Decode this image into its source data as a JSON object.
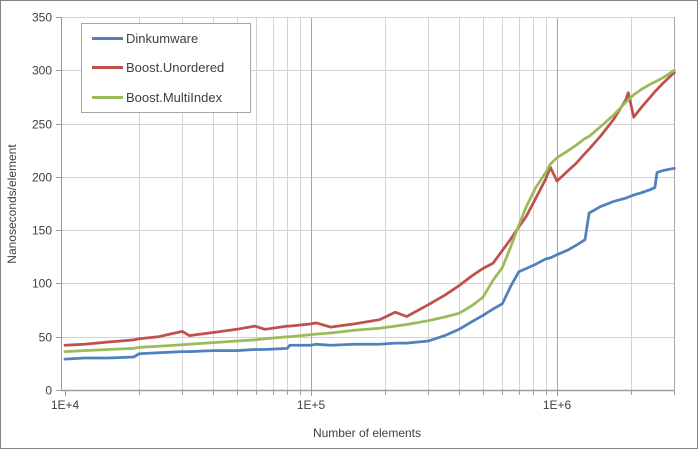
{
  "chart_data": {
    "type": "line",
    "title": "",
    "xlabel": "Number of elements",
    "ylabel": "Nanoseconds/element",
    "x_scale": "log",
    "xlim": [
      10000,
      3000000
    ],
    "ylim": [
      0,
      350
    ],
    "grid": "both",
    "legend_position": "top-left",
    "x_major_ticks": [
      {
        "value": 10000,
        "label": "1E+4"
      },
      {
        "value": 100000,
        "label": "1E+5"
      },
      {
        "value": 1000000,
        "label": "1E+6"
      }
    ],
    "y_ticks": [
      {
        "value": 0,
        "label": "0"
      },
      {
        "value": 50,
        "label": "50"
      },
      {
        "value": 100,
        "label": "100"
      },
      {
        "value": 150,
        "label": "150"
      },
      {
        "value": 200,
        "label": "200"
      },
      {
        "value": 250,
        "label": "250"
      },
      {
        "value": 300,
        "label": "300"
      },
      {
        "value": 350,
        "label": "350"
      }
    ],
    "x": [
      10000,
      12000,
      15000,
      19000,
      20000,
      24000,
      30000,
      32000,
      40000,
      50000,
      59000,
      65000,
      80000,
      82000,
      100000,
      105000,
      120000,
      150000,
      190000,
      220000,
      245000,
      300000,
      350000,
      400000,
      450000,
      500000,
      550000,
      600000,
      650000,
      700000,
      750000,
      820000,
      900000,
      940000,
      1000000,
      1100000,
      1200000,
      1300000,
      1350000,
      1500000,
      1700000,
      1900000,
      1950000,
      2050000,
      2200000,
      2400000,
      2500000,
      2550000,
      2700000,
      3000000
    ],
    "series": [
      {
        "name": "Dinkumware",
        "color": "#4F81BD",
        "values": [
          29,
          30,
          30,
          31,
          34,
          35,
          36,
          36,
          37,
          37,
          38,
          38,
          39,
          42,
          42,
          43,
          42,
          43,
          43,
          44,
          44,
          46,
          51,
          57,
          64,
          70,
          76,
          81,
          98,
          111,
          114,
          118,
          123,
          124,
          127,
          131,
          136,
          141,
          166,
          172,
          177,
          180,
          181,
          183,
          185,
          188,
          190,
          204,
          206,
          208
        ]
      },
      {
        "name": "Boost.Unordered",
        "color": "#C0504D",
        "values": [
          42,
          43,
          45,
          47,
          48,
          50,
          55,
          51,
          54,
          57,
          60,
          57,
          60,
          60,
          62,
          63,
          59,
          62,
          66,
          73,
          69,
          80,
          89,
          98,
          107,
          114,
          119,
          131,
          142,
          153,
          163,
          180,
          198,
          209,
          196,
          205,
          213,
          222,
          226,
          238,
          254,
          272,
          279,
          256,
          265,
          275,
          280,
          282,
          288,
          298
        ]
      },
      {
        "name": "Boost.MultiIndex",
        "color": "#9BBB59",
        "values": [
          36,
          37,
          38,
          39,
          40,
          41,
          42.5,
          43,
          44.5,
          46,
          47,
          48,
          50,
          50,
          52,
          52.5,
          53.5,
          56,
          58,
          60,
          61.5,
          65,
          68.5,
          72,
          79,
          87,
          103,
          115,
          135,
          155,
          172,
          190,
          204,
          212,
          218,
          224,
          230,
          236,
          238,
          247,
          258,
          270,
          272,
          277,
          282,
          287,
          289,
          290,
          293,
          300
        ]
      }
    ],
    "colors": {
      "grid_minor": "#d3d3d3",
      "grid_major": "#a6a6a6",
      "axis_line": "#9b9b9b",
      "tick_text": "#3f3f3f",
      "frame_border": "#848484"
    }
  }
}
